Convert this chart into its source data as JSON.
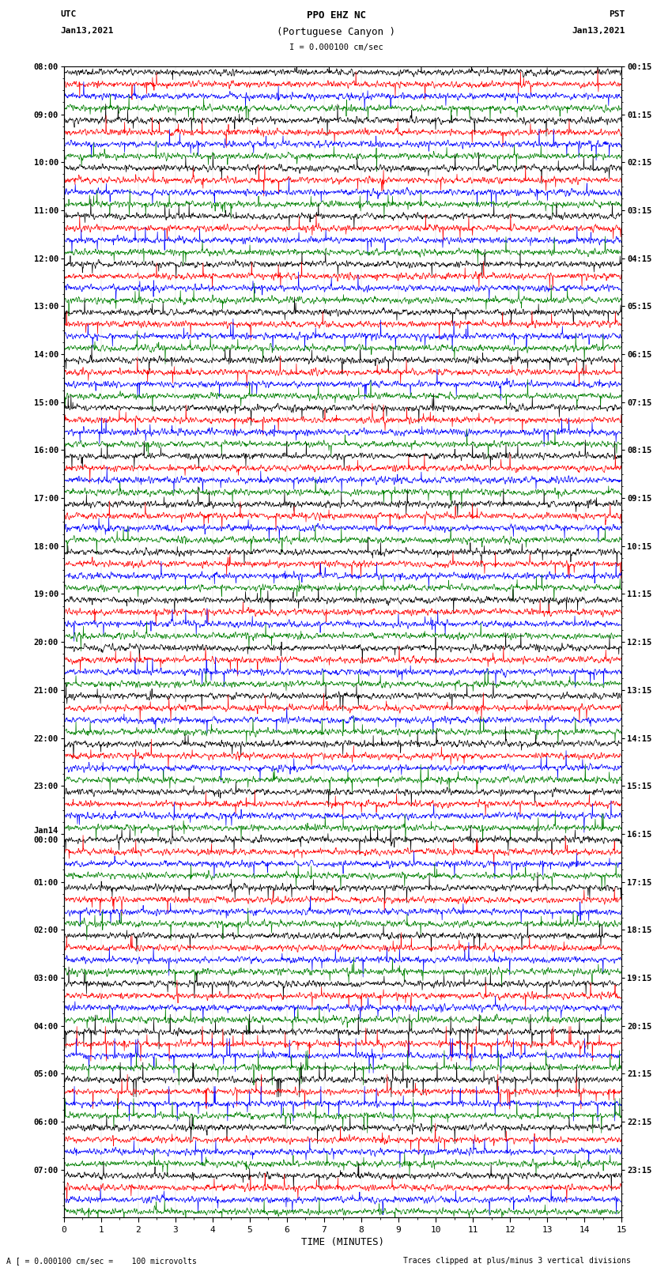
{
  "title_line1": "PPO EHZ NC",
  "title_line2": "(Portuguese Canyon )",
  "scale_label": "I = 0.000100 cm/sec",
  "left_label": "UTC",
  "left_date": "Jan13,2021",
  "right_label": "PST",
  "right_date": "Jan13,2021",
  "bottom_xlabel": "TIME (MINUTES)",
  "bottom_note": "A [ = 0.000100 cm/sec =    100 microvolts",
  "bottom_note2": "Traces clipped at plus/minus 3 vertical divisions",
  "utc_labels": [
    "08:00",
    "09:00",
    "10:00",
    "11:00",
    "12:00",
    "13:00",
    "14:00",
    "15:00",
    "16:00",
    "17:00",
    "18:00",
    "19:00",
    "20:00",
    "21:00",
    "22:00",
    "23:00",
    "Jan14\n00:00",
    "01:00",
    "02:00",
    "03:00",
    "04:00",
    "05:00",
    "06:00",
    "07:00"
  ],
  "pst_labels": [
    "00:15",
    "01:15",
    "02:15",
    "03:15",
    "04:15",
    "05:15",
    "06:15",
    "07:15",
    "08:15",
    "09:15",
    "10:15",
    "11:15",
    "12:15",
    "13:15",
    "14:15",
    "15:15",
    "16:15",
    "17:15",
    "18:15",
    "19:15",
    "20:15",
    "21:15",
    "22:15",
    "23:15"
  ],
  "n_rows": 96,
  "n_traces_per_row": 1,
  "colors_cycle": [
    "black",
    "red",
    "blue",
    "green"
  ],
  "bg_color": "white",
  "fig_width": 8.5,
  "fig_height": 16.13,
  "dpi": 100,
  "xmin": 0,
  "xmax": 15,
  "xticks": [
    0,
    1,
    2,
    3,
    4,
    5,
    6,
    7,
    8,
    9,
    10,
    11,
    12,
    13,
    14,
    15
  ],
  "noise_amplitude": 0.42,
  "spike_probability": 0.008,
  "spike_amplitude": 1.8
}
